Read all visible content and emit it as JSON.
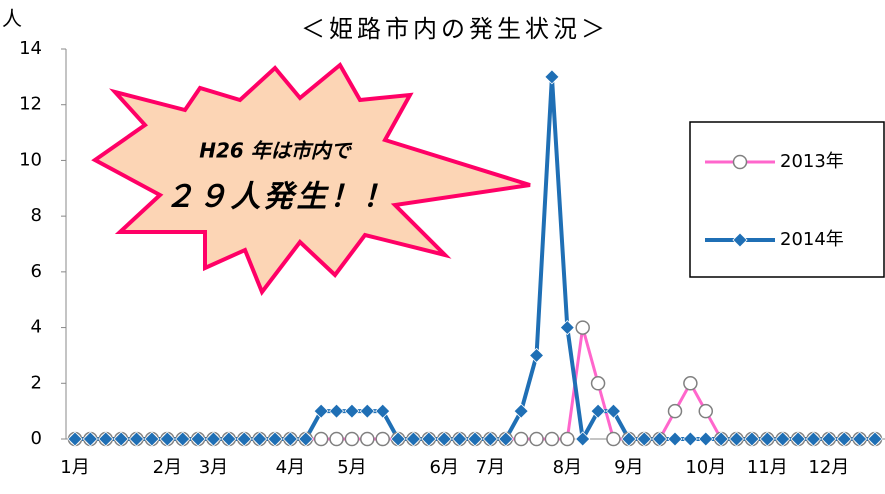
{
  "chart_data": {
    "type": "line",
    "title": "＜姫路市内の発生状況＞",
    "y_label": "人",
    "annotation": [
      "H26 年は市内で",
      "２９人発生！！"
    ],
    "categories": [
      "1月",
      null,
      null,
      null,
      null,
      null,
      "2月",
      null,
      null,
      "3月",
      null,
      null,
      null,
      null,
      "4月",
      null,
      null,
      null,
      "5月",
      null,
      null,
      null,
      null,
      null,
      "6月",
      null,
      null,
      "7月",
      null,
      null,
      null,
      null,
      "8月",
      null,
      null,
      null,
      "9月",
      null,
      null,
      null,
      null,
      "10月",
      null,
      null,
      null,
      "11月",
      null,
      null,
      null,
      "12月",
      null,
      null,
      null
    ],
    "series": [
      {
        "name": "2013年",
        "color": "#ff66cc",
        "marker": "circle",
        "values": [
          0,
          0,
          0,
          0,
          0,
          0,
          0,
          0,
          0,
          0,
          0,
          0,
          0,
          0,
          0,
          0,
          0,
          0,
          0,
          0,
          0,
          0,
          0,
          0,
          0,
          0,
          0,
          0,
          0,
          0,
          0,
          0,
          0,
          4,
          2,
          0,
          0,
          0,
          0,
          1,
          2,
          1,
          0,
          0,
          0,
          0,
          0,
          0,
          0,
          0,
          0,
          0,
          0
        ]
      },
      {
        "name": "2014年",
        "color": "#1f6fb5",
        "marker": "diamond",
        "values": [
          0,
          0,
          0,
          0,
          0,
          0,
          0,
          0,
          0,
          0,
          0,
          0,
          0,
          0,
          0,
          0,
          1,
          1,
          1,
          1,
          1,
          0,
          0,
          0,
          0,
          0,
          0,
          0,
          0,
          1,
          3,
          13,
          4,
          0,
          1,
          1,
          0,
          0,
          0,
          0,
          0,
          0,
          0,
          0,
          0,
          0,
          0,
          0,
          0,
          0,
          0,
          0,
          0
        ]
      }
    ],
    "ylim": [
      0,
      14
    ],
    "yticks": [
      0,
      2,
      4,
      6,
      8,
      10,
      12,
      14
    ],
    "grid": false,
    "legend": "right"
  }
}
